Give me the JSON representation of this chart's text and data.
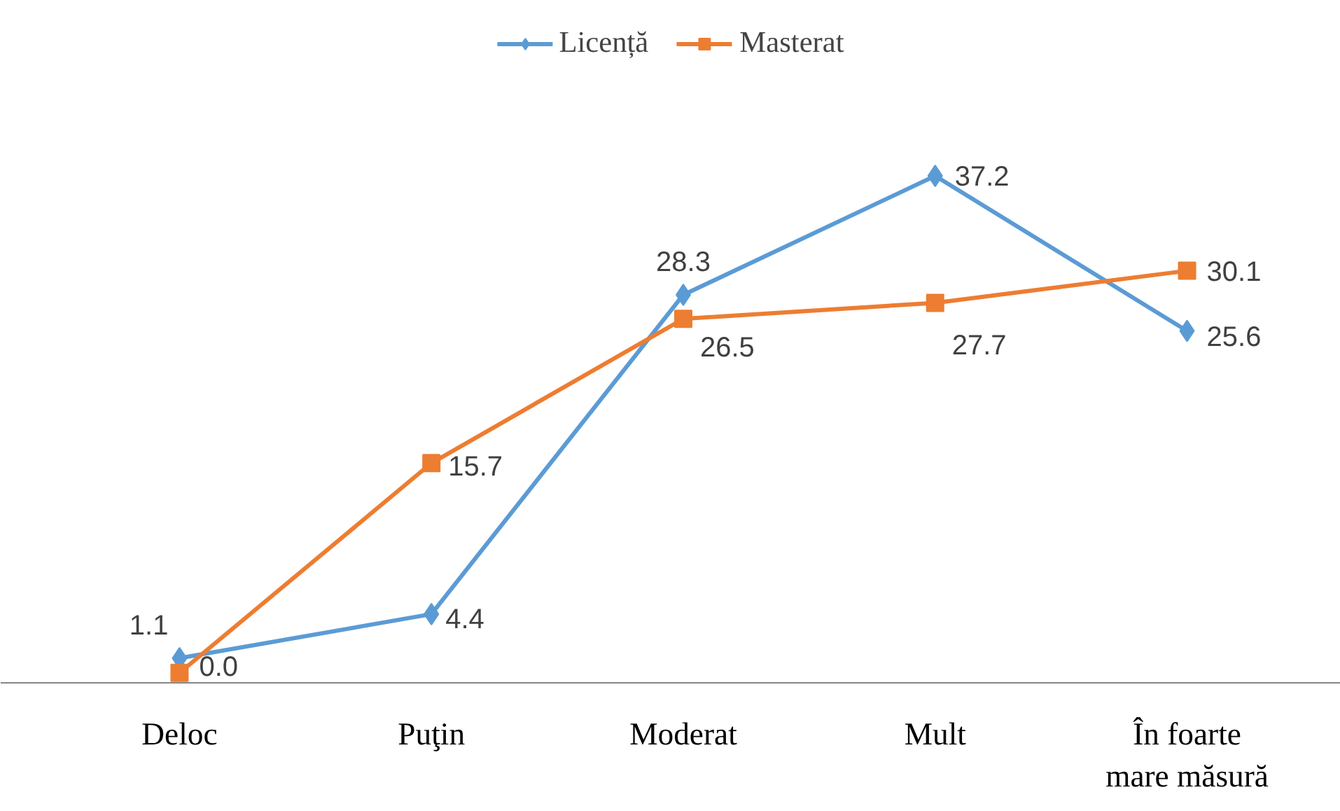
{
  "chart_data": {
    "type": "line",
    "categories": [
      "Deloc",
      "Puţin",
      "Moderat",
      "Mult",
      "În foarte mare măsură"
    ],
    "series": [
      {
        "name": "Licență",
        "color": "#5b9bd5",
        "marker": "diamond",
        "values": [
          1.1,
          4.4,
          28.3,
          37.2,
          25.6
        ],
        "value_labels": [
          "1.1",
          "4.4",
          "28.3",
          "37.2",
          "25.6"
        ]
      },
      {
        "name": "Masterat",
        "color": "#ed7d31",
        "marker": "square",
        "values": [
          0.0,
          15.7,
          26.5,
          27.7,
          30.1
        ],
        "value_labels": [
          "0.0",
          "15.7",
          "26.5",
          "27.7",
          "30.1"
        ]
      }
    ],
    "legend": "top",
    "grid": false
  }
}
